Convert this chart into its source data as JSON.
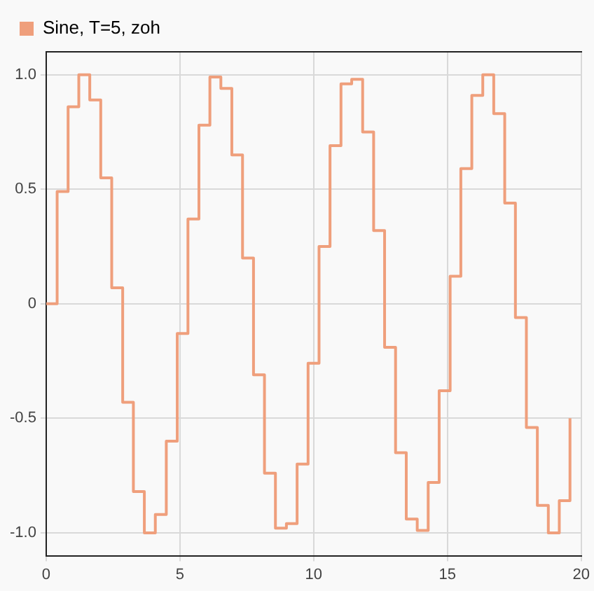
{
  "chart_data": {
    "type": "step",
    "x": [
      0,
      0.41,
      0.82,
      1.22,
      1.63,
      2.04,
      2.45,
      2.86,
      3.26,
      3.67,
      4.08,
      4.49,
      4.9,
      5.3,
      5.71,
      6.12,
      6.53,
      6.94,
      7.34,
      7.75,
      8.16,
      8.57,
      8.98,
      9.38,
      9.79,
      10.2,
      10.61,
      11.02,
      11.42,
      11.83,
      12.24,
      12.65,
      13.06,
      13.46,
      13.87,
      14.28,
      14.69,
      15.1,
      15.5,
      15.91,
      16.32,
      16.73,
      17.14,
      17.54,
      17.95,
      18.36,
      18.77,
      19.18,
      19.58
    ],
    "series": [
      {
        "name": "Sine, T=5, zoh",
        "color": "#ef9f7c",
        "values": [
          0,
          0.49,
          0.86,
          1.0,
          0.89,
          0.55,
          0.07,
          -0.43,
          -0.82,
          -1.0,
          -0.92,
          -0.6,
          -0.13,
          0.37,
          0.78,
          0.99,
          0.94,
          0.65,
          0.2,
          -0.31,
          -0.74,
          -0.98,
          -0.96,
          -0.7,
          -0.26,
          0.25,
          0.69,
          0.96,
          0.98,
          0.75,
          0.32,
          -0.19,
          -0.65,
          -0.94,
          -0.99,
          -0.78,
          -0.38,
          0.12,
          0.59,
          0.91,
          1.0,
          0.83,
          0.44,
          -0.06,
          -0.54,
          -0.88,
          -1.0,
          -0.86,
          -0.5
        ]
      }
    ],
    "xlim": [
      0,
      20
    ],
    "xticks": [
      0,
      5,
      10,
      15,
      20
    ],
    "ylim": [
      -1.1,
      1.1
    ],
    "yticks": [
      {
        "value": -1,
        "label": "-1.0"
      },
      {
        "value": -0.5,
        "label": "-0.5"
      },
      0,
      {
        "value": 0.5,
        "label": "0.5"
      },
      {
        "value": 1,
        "label": "1.0"
      }
    ],
    "grid": true,
    "legend": "top left",
    "marker": "none",
    "line_style": "solid"
  }
}
